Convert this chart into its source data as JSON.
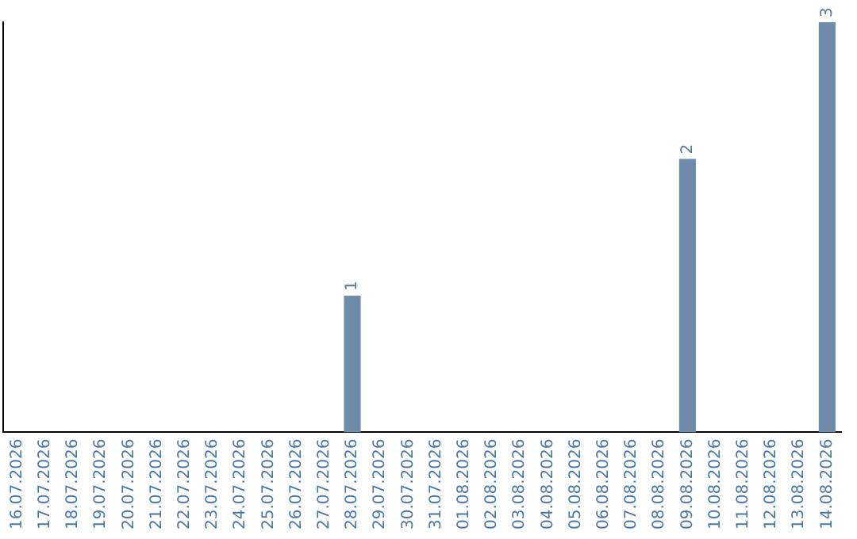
{
  "chart_data": {
    "type": "bar",
    "categories": [
      "16.07.2026",
      "17.07.2026",
      "18.07.2026",
      "19.07.2026",
      "20.07.2026",
      "21.07.2026",
      "22.07.2026",
      "23.07.2026",
      "24.07.2026",
      "25.07.2026",
      "26.07.2026",
      "27.07.2026",
      "28.07.2026",
      "29.07.2026",
      "30.07.2026",
      "31.07.2026",
      "01.08.2026",
      "02.08.2026",
      "03.08.2026",
      "04.08.2026",
      "05.08.2026",
      "06.08.2026",
      "07.08.2026",
      "08.08.2026",
      "09.08.2026",
      "10.08.2026",
      "11.08.2026",
      "12.08.2026",
      "13.08.2026",
      "14.08.2026"
    ],
    "values": [
      null,
      null,
      null,
      null,
      null,
      null,
      null,
      null,
      null,
      null,
      null,
      null,
      1,
      null,
      null,
      null,
      null,
      null,
      null,
      null,
      null,
      null,
      null,
      null,
      2,
      null,
      null,
      null,
      null,
      3
    ],
    "value_labels": [
      null,
      null,
      null,
      null,
      null,
      null,
      null,
      null,
      null,
      null,
      null,
      null,
      "1",
      null,
      null,
      null,
      null,
      null,
      null,
      null,
      null,
      null,
      null,
      null,
      "2",
      null,
      null,
      null,
      null,
      "3"
    ],
    "color": "#6e8caa",
    "tick_labels": "x",
    "grid": false,
    "legend": false
  }
}
